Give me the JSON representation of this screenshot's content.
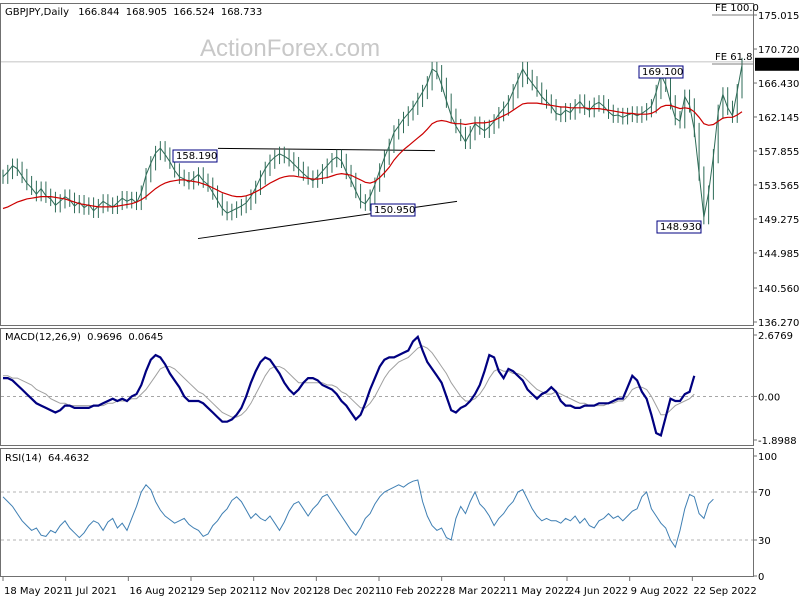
{
  "watermark": "ActionForex.com",
  "colors": {
    "price": "#2e6b57",
    "ma": "#cc0000",
    "macd": "#000080",
    "signal": "#a0a0a0",
    "rsi": "#3f7fb3",
    "grid": "#9a9a9a",
    "tag_border": "#000080"
  },
  "chart_data": [
    {
      "type": "line",
      "title": "GBPJPY,Daily",
      "ohlc_header": [
        "166.844",
        "168.905",
        "166.524",
        "168.733"
      ],
      "last_price": "168.733",
      "ylim": [
        136.27,
        175.015
      ],
      "y_ticks": [
        "175.015",
        "170.720",
        "166.430",
        "162.145",
        "157.855",
        "153.565",
        "149.275",
        "144.985",
        "140.560",
        "136.270"
      ],
      "x_ticks": [
        "18 May 2021",
        "1 Jul 2021",
        "16 Aug 2021",
        "29 Sep 2021",
        "12 Nov 2021",
        "28 Dec 2021",
        "10 Feb 2022",
        "28 Mar 2022",
        "11 May 2022",
        "24 Jun 2022",
        "9 Aug 2022",
        "22 Sep 2022"
      ],
      "series": [
        {
          "values": [
            154.6,
            155.2,
            156.0,
            155.6,
            154.7,
            153.8,
            153.2,
            152.4,
            153.1,
            152.2,
            151.8,
            151.0,
            151.5,
            152.1,
            151.7,
            150.9,
            151.4,
            150.7,
            151.1,
            150.3,
            150.9,
            151.5,
            151.1,
            150.8,
            151.3,
            151.9,
            151.5,
            151.8,
            151.3,
            152.6,
            154.8,
            156.3,
            157.6,
            158.2,
            157.4,
            156.5,
            155.4,
            154.6,
            154.3,
            153.9,
            154.4,
            154.9,
            154.1,
            153.6,
            152.6,
            151.6,
            150.6,
            150.0,
            150.3,
            150.6,
            150.9,
            151.3,
            152.1,
            153.2,
            154.5,
            155.6,
            156.5,
            157.1,
            157.5,
            157.2,
            156.8,
            156.2,
            155.6,
            155.0,
            154.5,
            154.1,
            154.6,
            155.3,
            156.0,
            156.7,
            157.1,
            156.6,
            155.2,
            154.2,
            152.8,
            151.5,
            151.2,
            152.1,
            153.6,
            155.4,
            157.0,
            158.5,
            160.2,
            161.0,
            161.9,
            162.6,
            163.3,
            164.3,
            165.3,
            166.4,
            168.2,
            167.8,
            166.2,
            164.2,
            162.3,
            161.0,
            160.0,
            159.0,
            160.1,
            161.3,
            160.8,
            160.4,
            160.9,
            161.6,
            162.5,
            163.2,
            164.0,
            165.4,
            166.8,
            168.2,
            167.2,
            166.4,
            165.6,
            164.7,
            164.1,
            163.5,
            162.6,
            162.4,
            163.0,
            162.7,
            163.5,
            164.1,
            163.3,
            163.0,
            163.7,
            164.0,
            163.5,
            162.8,
            162.3,
            162.4,
            162.1,
            162.4,
            162.6,
            162.3,
            162.6,
            163.0,
            163.5,
            165.3,
            167.5,
            166.2,
            164.0,
            162.0,
            161.6,
            164.7,
            163.6,
            160.5,
            155.0,
            149.5,
            152.6,
            157.2,
            162.8,
            165.0,
            163.3,
            162.3,
            165.4,
            168.7
          ]
        },
        {
          "values": [
            150.6,
            150.8,
            151.1,
            151.4,
            151.6,
            151.8,
            151.9,
            152.0,
            152.1,
            152.1,
            152.1,
            152.0,
            151.9,
            151.8,
            151.6,
            151.4,
            151.2,
            151.1,
            151.0,
            150.9,
            150.8,
            150.8,
            150.8,
            150.8,
            150.9,
            151.0,
            151.1,
            151.2,
            151.4,
            151.7,
            152.1,
            152.6,
            153.1,
            153.5,
            153.8,
            154.0,
            154.1,
            154.2,
            154.2,
            154.1,
            154.0,
            153.9,
            153.7,
            153.5,
            153.2,
            152.9,
            152.6,
            152.4,
            152.2,
            152.1,
            152.1,
            152.2,
            152.4,
            152.7,
            153.0,
            153.4,
            153.8,
            154.1,
            154.4,
            154.6,
            154.7,
            154.7,
            154.6,
            154.5,
            154.4,
            154.3,
            154.3,
            154.4,
            154.5,
            154.7,
            154.9,
            155.0,
            154.9,
            154.8,
            154.5,
            154.2,
            153.9,
            153.8,
            154.0,
            154.5,
            155.1,
            155.8,
            156.7,
            157.4,
            158.0,
            158.5,
            159.0,
            159.5,
            160.0,
            160.6,
            161.3,
            161.6,
            161.7,
            161.6,
            161.4,
            161.3,
            161.3,
            161.2,
            161.3,
            161.4,
            161.4,
            161.4,
            161.5,
            161.7,
            162.0,
            162.3,
            162.6,
            163.0,
            163.4,
            163.8,
            163.9,
            163.9,
            163.9,
            163.8,
            163.7,
            163.6,
            163.5,
            163.4,
            163.4,
            163.3,
            163.3,
            163.3,
            163.3,
            163.2,
            163.2,
            163.2,
            163.1,
            163.0,
            162.9,
            162.8,
            162.7,
            162.6,
            162.6,
            162.5,
            162.5,
            162.5,
            162.6,
            162.9,
            163.4,
            163.6,
            163.6,
            163.4,
            163.2,
            163.3,
            163.2,
            162.8,
            162.1,
            161.3,
            161.1,
            161.2,
            161.6,
            162.0,
            162.1,
            162.1,
            162.4,
            162.8
          ]
        }
      ],
      "annotations": [
        {
          "text": "158.190",
          "value": 158.19
        },
        {
          "text": "150.950",
          "value": 150.95
        },
        {
          "text": "169.100",
          "value": 169.1
        },
        {
          "text": "148.930",
          "value": 148.93
        },
        {
          "text": "FE 100.0",
          "value": 175.7
        },
        {
          "text": "FE 61.8",
          "value": 170.4
        }
      ]
    },
    {
      "type": "line",
      "title": "MACD(12,26,9)",
      "title_values": [
        "0.9696",
        "0.0645"
      ],
      "ylim": [
        -1.8988,
        2.6769
      ],
      "y_ticks": [
        "2.6769",
        "0.00",
        "-1.8988"
      ],
      "series": [
        {
          "values": [
            0.8,
            0.8,
            0.7,
            0.5,
            0.3,
            0.1,
            -0.1,
            -0.3,
            -0.4,
            -0.5,
            -0.6,
            -0.7,
            -0.6,
            -0.4,
            -0.4,
            -0.5,
            -0.5,
            -0.5,
            -0.5,
            -0.4,
            -0.4,
            -0.3,
            -0.2,
            -0.1,
            -0.2,
            -0.1,
            -0.2,
            0.0,
            0.1,
            0.5,
            1.1,
            1.6,
            1.8,
            1.7,
            1.4,
            1.0,
            0.7,
            0.4,
            0.0,
            -0.2,
            -0.2,
            -0.2,
            -0.3,
            -0.5,
            -0.7,
            -0.9,
            -1.1,
            -1.1,
            -1.0,
            -0.8,
            -0.5,
            0.0,
            0.6,
            1.1,
            1.5,
            1.7,
            1.6,
            1.3,
            1.0,
            0.6,
            0.3,
            0.1,
            0.3,
            0.6,
            0.8,
            0.8,
            0.7,
            0.5,
            0.4,
            0.3,
            0.1,
            -0.2,
            -0.4,
            -0.7,
            -1.0,
            -0.8,
            -0.3,
            0.3,
            0.8,
            1.3,
            1.6,
            1.7,
            1.7,
            1.8,
            1.9,
            2.0,
            2.4,
            2.6,
            2.0,
            1.5,
            1.2,
            0.9,
            0.6,
            0.0,
            -0.6,
            -0.7,
            -0.5,
            -0.4,
            -0.2,
            0.1,
            0.5,
            1.1,
            1.8,
            1.7,
            1.1,
            0.8,
            1.2,
            1.1,
            0.9,
            0.7,
            0.3,
            0.1,
            -0.1,
            0.1,
            0.2,
            0.4,
            0.2,
            -0.2,
            -0.4,
            -0.4,
            -0.5,
            -0.5,
            -0.4,
            -0.4,
            -0.4,
            -0.3,
            -0.3,
            -0.3,
            -0.2,
            -0.1,
            -0.1,
            0.4,
            0.9,
            0.7,
            0.2,
            -0.1,
            -0.8,
            -1.6,
            -1.7,
            -0.9,
            -0.1,
            -0.2,
            -0.2,
            0.1,
            0.2,
            0.9
          ]
        },
        {
          "values": [
            0.9,
            0.9,
            0.8,
            0.8,
            0.7,
            0.6,
            0.5,
            0.3,
            0.2,
            0.1,
            -0.1,
            -0.2,
            -0.3,
            -0.3,
            -0.4,
            -0.4,
            -0.4,
            -0.4,
            -0.4,
            -0.4,
            -0.4,
            -0.4,
            -0.3,
            -0.3,
            -0.2,
            -0.2,
            -0.2,
            -0.1,
            -0.1,
            0.1,
            0.3,
            0.6,
            0.9,
            1.2,
            1.3,
            1.3,
            1.2,
            1.0,
            0.8,
            0.6,
            0.4,
            0.2,
            0.1,
            -0.1,
            -0.3,
            -0.5,
            -0.7,
            -0.8,
            -0.9,
            -0.9,
            -0.8,
            -0.6,
            -0.3,
            0.1,
            0.5,
            0.9,
            1.2,
            1.3,
            1.3,
            1.2,
            1.0,
            0.8,
            0.6,
            0.6,
            0.6,
            0.6,
            0.6,
            0.6,
            0.5,
            0.5,
            0.4,
            0.2,
            0.1,
            -0.1,
            -0.3,
            -0.5,
            -0.5,
            -0.3,
            0.0,
            0.4,
            0.8,
            1.1,
            1.3,
            1.5,
            1.6,
            1.7,
            1.9,
            2.1,
            2.2,
            2.1,
            1.9,
            1.6,
            1.3,
            1.0,
            0.6,
            0.3,
            0.0,
            -0.2,
            -0.2,
            -0.1,
            0.1,
            0.4,
            0.8,
            1.1,
            1.2,
            1.1,
            1.1,
            1.0,
            1.0,
            0.9,
            0.7,
            0.5,
            0.3,
            0.2,
            0.1,
            0.1,
            0.2,
            0.1,
            0.0,
            -0.1,
            -0.2,
            -0.3,
            -0.3,
            -0.4,
            -0.4,
            -0.4,
            -0.4,
            -0.3,
            -0.3,
            -0.2,
            -0.2,
            0.0,
            0.3,
            0.4,
            0.4,
            0.3,
            0.0,
            -0.4,
            -0.8,
            -0.8,
            -0.6,
            -0.4,
            -0.3,
            -0.2,
            -0.1,
            0.1
          ]
        }
      ]
    },
    {
      "type": "line",
      "title": "RSI(14)",
      "title_values": [
        "64.4632"
      ],
      "ylim": [
        0,
        100
      ],
      "y_ticks": [
        "100",
        "70",
        "30",
        "0"
      ],
      "levels": [
        70,
        30
      ],
      "series": [
        {
          "values": [
            66,
            62,
            58,
            52,
            46,
            42,
            38,
            40,
            34,
            33,
            38,
            36,
            42,
            46,
            40,
            36,
            32,
            36,
            42,
            46,
            44,
            38,
            45,
            48,
            40,
            44,
            38,
            48,
            58,
            70,
            76,
            72,
            62,
            55,
            50,
            47,
            44,
            46,
            48,
            43,
            40,
            38,
            33,
            35,
            42,
            46,
            52,
            56,
            63,
            66,
            62,
            55,
            48,
            52,
            48,
            46,
            50,
            44,
            38,
            45,
            54,
            60,
            62,
            56,
            50,
            56,
            60,
            66,
            68,
            62,
            56,
            50,
            44,
            38,
            34,
            40,
            48,
            52,
            60,
            66,
            70,
            72,
            74,
            76,
            74,
            77,
            79,
            80,
            62,
            50,
            42,
            38,
            40,
            32,
            30,
            48,
            58,
            52,
            62,
            70,
            60,
            56,
            50,
            42,
            48,
            52,
            58,
            62,
            70,
            72,
            64,
            56,
            50,
            46,
            48,
            46,
            46,
            44,
            48,
            46,
            50,
            44,
            48,
            42,
            40,
            46,
            48,
            52,
            48,
            50,
            46,
            50,
            54,
            56,
            66,
            70,
            56,
            50,
            44,
            40,
            30,
            24,
            38,
            56,
            68,
            66,
            52,
            48,
            60,
            64
          ]
        }
      ]
    }
  ]
}
